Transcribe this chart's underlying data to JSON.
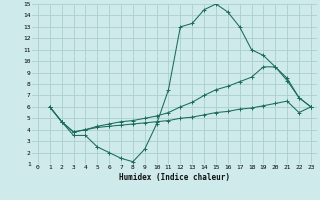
{
  "xlabel": "Humidex (Indice chaleur)",
  "xlim": [
    -0.5,
    23.5
  ],
  "ylim": [
    1,
    15
  ],
  "xticks": [
    0,
    1,
    2,
    3,
    4,
    5,
    6,
    7,
    8,
    9,
    10,
    11,
    12,
    13,
    14,
    15,
    16,
    17,
    18,
    19,
    20,
    21,
    22,
    23
  ],
  "yticks": [
    1,
    2,
    3,
    4,
    5,
    6,
    7,
    8,
    9,
    10,
    11,
    12,
    13,
    14,
    15
  ],
  "bg_color": "#ceeaea",
  "grid_color": "#aacfcf",
  "line_color": "#1a6b5a",
  "line1_x": [
    1,
    2,
    3,
    4,
    5,
    6,
    7,
    8,
    9,
    10,
    11,
    12,
    13,
    14,
    15,
    16,
    17,
    18,
    19,
    20,
    21,
    22,
    23
  ],
  "line1_y": [
    6.0,
    4.7,
    3.5,
    3.5,
    2.5,
    2.0,
    1.5,
    1.2,
    2.3,
    4.5,
    7.5,
    13.0,
    13.3,
    14.5,
    15.0,
    14.3,
    13.0,
    11.0,
    10.5,
    9.5,
    8.3,
    6.8,
    6.0
  ],
  "line2_x": [
    1,
    2,
    3,
    4,
    5,
    6,
    7,
    8,
    9,
    10,
    11,
    12,
    13,
    14,
    15,
    16,
    17,
    18,
    19,
    20,
    21,
    22,
    23
  ],
  "line2_y": [
    6.0,
    4.7,
    3.8,
    4.0,
    4.3,
    4.5,
    4.7,
    4.8,
    5.0,
    5.2,
    5.5,
    6.0,
    6.4,
    7.0,
    7.5,
    7.8,
    8.2,
    8.6,
    9.5,
    9.5,
    8.5,
    6.8,
    6.0
  ],
  "line3_x": [
    1,
    2,
    3,
    4,
    5,
    6,
    7,
    8,
    9,
    10,
    11,
    12,
    13,
    14,
    15,
    16,
    17,
    18,
    19,
    20,
    21,
    22,
    23
  ],
  "line3_y": [
    6.0,
    4.7,
    3.8,
    4.0,
    4.2,
    4.3,
    4.4,
    4.5,
    4.6,
    4.7,
    4.8,
    5.0,
    5.1,
    5.3,
    5.5,
    5.6,
    5.8,
    5.9,
    6.1,
    6.3,
    6.5,
    5.5,
    6.0
  ]
}
